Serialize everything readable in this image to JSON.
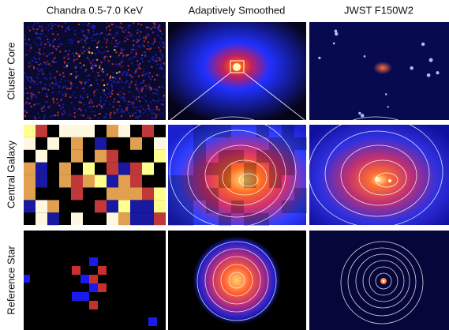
{
  "columns": [
    {
      "title": "Chandra 0.5-7.0 KeV"
    },
    {
      "title": "Adaptively Smoothed"
    },
    {
      "title": "JWST F150W2"
    }
  ],
  "rows": [
    {
      "label": "Cluster Core"
    },
    {
      "label": "Central Galaxy"
    },
    {
      "label": "Reference Star"
    }
  ]
}
